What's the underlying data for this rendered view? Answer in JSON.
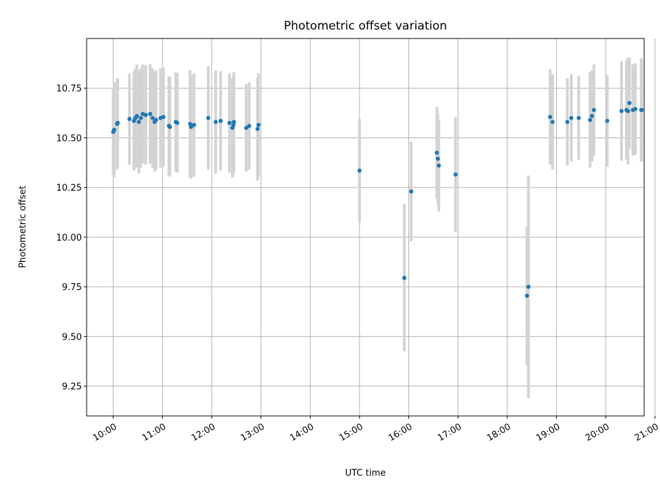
{
  "chart_data": {
    "type": "scatter",
    "title": "Photometric offset variation",
    "xlabel": "UTC time",
    "ylabel": "Photometric offset",
    "x_unit": "hours UTC",
    "xlim": [
      9.46,
      20.78
    ],
    "ylim": [
      9.1,
      11.0
    ],
    "x_ticks": [
      {
        "value": 10,
        "label": "10:00"
      },
      {
        "value": 11,
        "label": "11:00"
      },
      {
        "value": 12,
        "label": "12:00"
      },
      {
        "value": 13,
        "label": "13:00"
      },
      {
        "value": 14,
        "label": "14:00"
      },
      {
        "value": 15,
        "label": "15:00"
      },
      {
        "value": 16,
        "label": "16:00"
      },
      {
        "value": 17,
        "label": "17:00"
      },
      {
        "value": 18,
        "label": "18:00"
      },
      {
        "value": 19,
        "label": "19:00"
      },
      {
        "value": 20,
        "label": "20:00"
      },
      {
        "value": 21,
        "label": "21:00"
      }
    ],
    "y_ticks": [
      {
        "value": 9.25,
        "label": "9.25"
      },
      {
        "value": 9.5,
        "label": "9.50"
      },
      {
        "value": 9.75,
        "label": "9.75"
      },
      {
        "value": 10.0,
        "label": "10.00"
      },
      {
        "value": 10.25,
        "label": "10.25"
      },
      {
        "value": 10.5,
        "label": "10.50"
      },
      {
        "value": 10.75,
        "label": "10.75"
      }
    ],
    "grid": true,
    "colors": {
      "point": "#1f77b4",
      "errorbar": "#d3d3d3"
    },
    "series": [
      {
        "x": [
          10.0,
          10.02,
          10.08,
          10.09,
          10.33,
          10.42,
          10.45,
          10.48,
          10.52,
          10.56,
          10.6,
          10.66,
          10.75,
          10.8,
          10.84,
          10.87,
          10.96,
          11.02,
          11.13,
          11.15,
          11.27,
          11.3,
          11.56,
          11.58,
          11.64,
          11.93,
          12.08,
          12.18,
          12.36,
          12.42,
          12.44,
          12.45,
          12.7,
          12.76,
          12.93,
          12.95,
          15.0,
          15.91,
          16.05,
          16.57,
          16.59,
          16.61,
          16.95,
          18.4,
          18.43,
          18.87,
          18.92,
          19.22,
          19.3,
          19.45,
          19.68,
          19.72,
          19.76,
          20.03,
          20.32,
          20.42,
          20.45,
          20.48,
          20.55,
          20.6,
          20.72,
          20.73
        ],
        "y": [
          10.53,
          10.54,
          10.57,
          10.575,
          10.595,
          10.585,
          10.6,
          10.61,
          10.58,
          10.6,
          10.62,
          10.615,
          10.62,
          10.6,
          10.58,
          10.59,
          10.6,
          10.605,
          10.56,
          10.555,
          10.58,
          10.575,
          10.57,
          10.555,
          10.565,
          10.6,
          10.58,
          10.585,
          10.575,
          10.55,
          10.565,
          10.58,
          10.55,
          10.56,
          10.545,
          10.565,
          10.335,
          9.795,
          10.23,
          10.425,
          10.395,
          10.36,
          10.315,
          9.705,
          9.75,
          10.605,
          10.58,
          10.58,
          10.6,
          10.6,
          10.59,
          10.61,
          10.64,
          10.585,
          10.635,
          10.64,
          10.635,
          10.675,
          10.64,
          10.645,
          10.64,
          10.64
        ],
        "err": [
          0.22,
          0.24,
          0.23,
          0.22,
          0.23,
          0.25,
          0.25,
          0.26,
          0.26,
          0.25,
          0.25,
          0.25,
          0.25,
          0.25,
          0.25,
          0.25,
          0.25,
          0.25,
          0.25,
          0.25,
          0.25,
          0.25,
          0.27,
          0.26,
          0.26,
          0.26,
          0.26,
          0.25,
          0.25,
          0.25,
          0.25,
          0.25,
          0.22,
          0.22,
          0.26,
          0.26,
          0.26,
          0.37,
          0.25,
          0.23,
          0.23,
          0.23,
          0.29,
          0.35,
          0.56,
          0.24,
          0.24,
          0.22,
          0.22,
          0.21,
          0.24,
          0.23,
          0.23,
          0.23,
          0.25,
          0.25,
          0.27,
          0.23,
          0.23,
          0.23,
          0.26,
          0.26
        ]
      }
    ]
  }
}
